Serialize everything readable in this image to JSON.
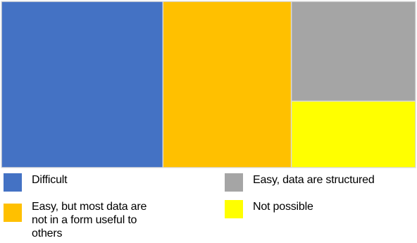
{
  "chart_data": {
    "type": "treemap",
    "items": [
      {
        "name": "Difficult",
        "value": 39,
        "color": "#4472C4",
        "legend_lines": [
          "Difficult"
        ]
      },
      {
        "name": "Easy, but most data are not in a form useful to others",
        "value": 31,
        "color": "#FFC000",
        "legend_lines": [
          "Easy, but most data are",
          "not in a form useful to",
          "others"
        ]
      },
      {
        "name": "Easy, data are structured",
        "value": 18,
        "color": "#A5A5A5",
        "legend_lines": [
          "Easy, data are structured"
        ]
      },
      {
        "name": "Not possible",
        "value": 12,
        "color": "#FFFF00",
        "legend_lines": [
          "Not possible"
        ]
      }
    ],
    "legend_placement": "bottom"
  }
}
